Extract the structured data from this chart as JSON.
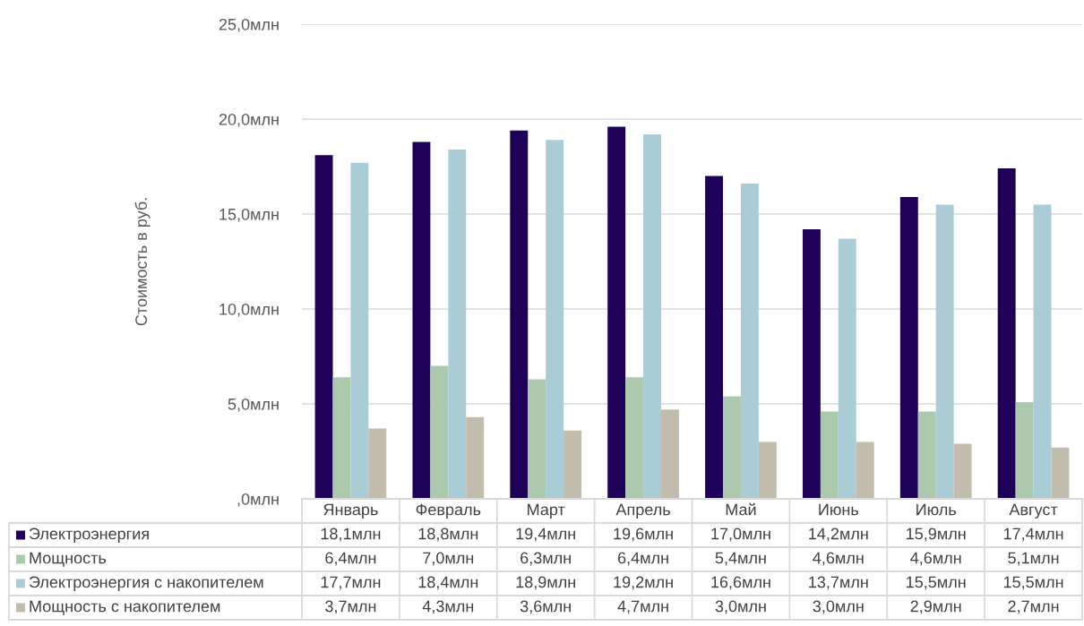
{
  "chart_data": {
    "type": "bar",
    "ylabel": "Стоимость в руб.",
    "categories": [
      "Январь",
      "Февраль",
      "Март",
      "Апрель",
      "Май",
      "Июнь",
      "Июль",
      "Август"
    ],
    "series": [
      {
        "name": "Электроэнергия",
        "color": "#1e0059",
        "values": [
          18.1,
          18.8,
          19.4,
          19.6,
          17.0,
          14.2,
          15.9,
          17.4
        ],
        "value_labels": [
          "18,1млн",
          "18,8млн",
          "19,4млн",
          "19,6млн",
          "17,0млн",
          "14,2млн",
          "15,9млн",
          "17,4млн"
        ]
      },
      {
        "name": "Мощность",
        "color": "#adc9ad",
        "values": [
          6.4,
          7.0,
          6.3,
          6.4,
          5.4,
          4.6,
          4.6,
          5.1
        ],
        "value_labels": [
          "6,4млн",
          "7,0млн",
          "6,3млн",
          "6,4млн",
          "5,4млн",
          "4,6млн",
          "4,6млн",
          "5,1млн"
        ]
      },
      {
        "name": "Электроэнергия с накопителем",
        "color": "#a9ccd6",
        "values": [
          17.7,
          18.4,
          18.9,
          19.2,
          16.6,
          13.7,
          15.5,
          15.5
        ],
        "value_labels": [
          "17,7млн",
          "18,4млн",
          "18,9млн",
          "19,2млн",
          "16,6млн",
          "13,7млн",
          "15,5млн",
          "15,5млн"
        ]
      },
      {
        "name": "Мощность с накопителем",
        "color": "#c1bcac",
        "values": [
          3.7,
          4.3,
          3.6,
          4.7,
          3.0,
          3.0,
          2.9,
          2.7
        ],
        "value_labels": [
          "3,7млн",
          "4,3млн",
          "3,6млн",
          "4,7млн",
          "3,0млн",
          "3,0млн",
          "2,9млн",
          "2,7млн"
        ]
      }
    ],
    "ylim": [
      0,
      25
    ],
    "yticks": [
      {
        "value": 0,
        "label": ",0млн"
      },
      {
        "value": 5,
        "label": "5,0млн"
      },
      {
        "value": 10,
        "label": "10,0млн"
      },
      {
        "value": 15,
        "label": "15,0млн"
      },
      {
        "value": 20,
        "label": "20,0млн"
      },
      {
        "value": 25,
        "label": "25,0млн"
      }
    ],
    "grid": "y",
    "legend": "bottom"
  }
}
